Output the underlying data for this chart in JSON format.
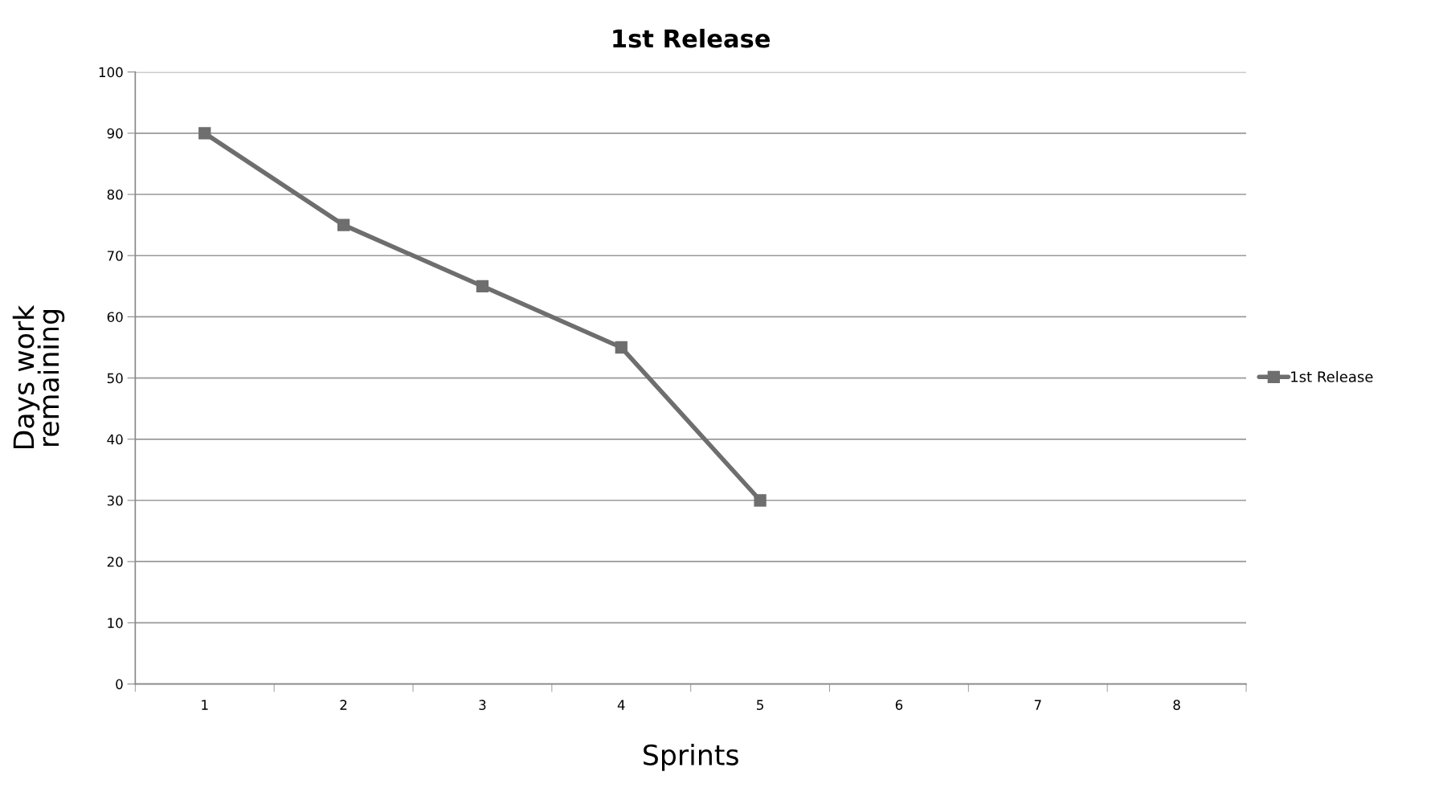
{
  "chart_data": {
    "type": "line",
    "title": "1st Release",
    "xlabel": "Sprints",
    "ylabel": "Days work\nremaining",
    "categories": [
      "1",
      "2",
      "3",
      "4",
      "5",
      "6",
      "7",
      "8"
    ],
    "series": [
      {
        "name": "1st Release",
        "color": "#6e6e6e",
        "values": [
          90,
          75,
          65,
          55,
          30,
          null,
          null,
          null
        ]
      }
    ],
    "ylim": [
      0,
      100
    ],
    "yticks": [
      0,
      10,
      20,
      30,
      40,
      50,
      60,
      70,
      80,
      90,
      100
    ],
    "grid": "y",
    "legend": "right",
    "marker": "square",
    "line_style": "solid"
  }
}
